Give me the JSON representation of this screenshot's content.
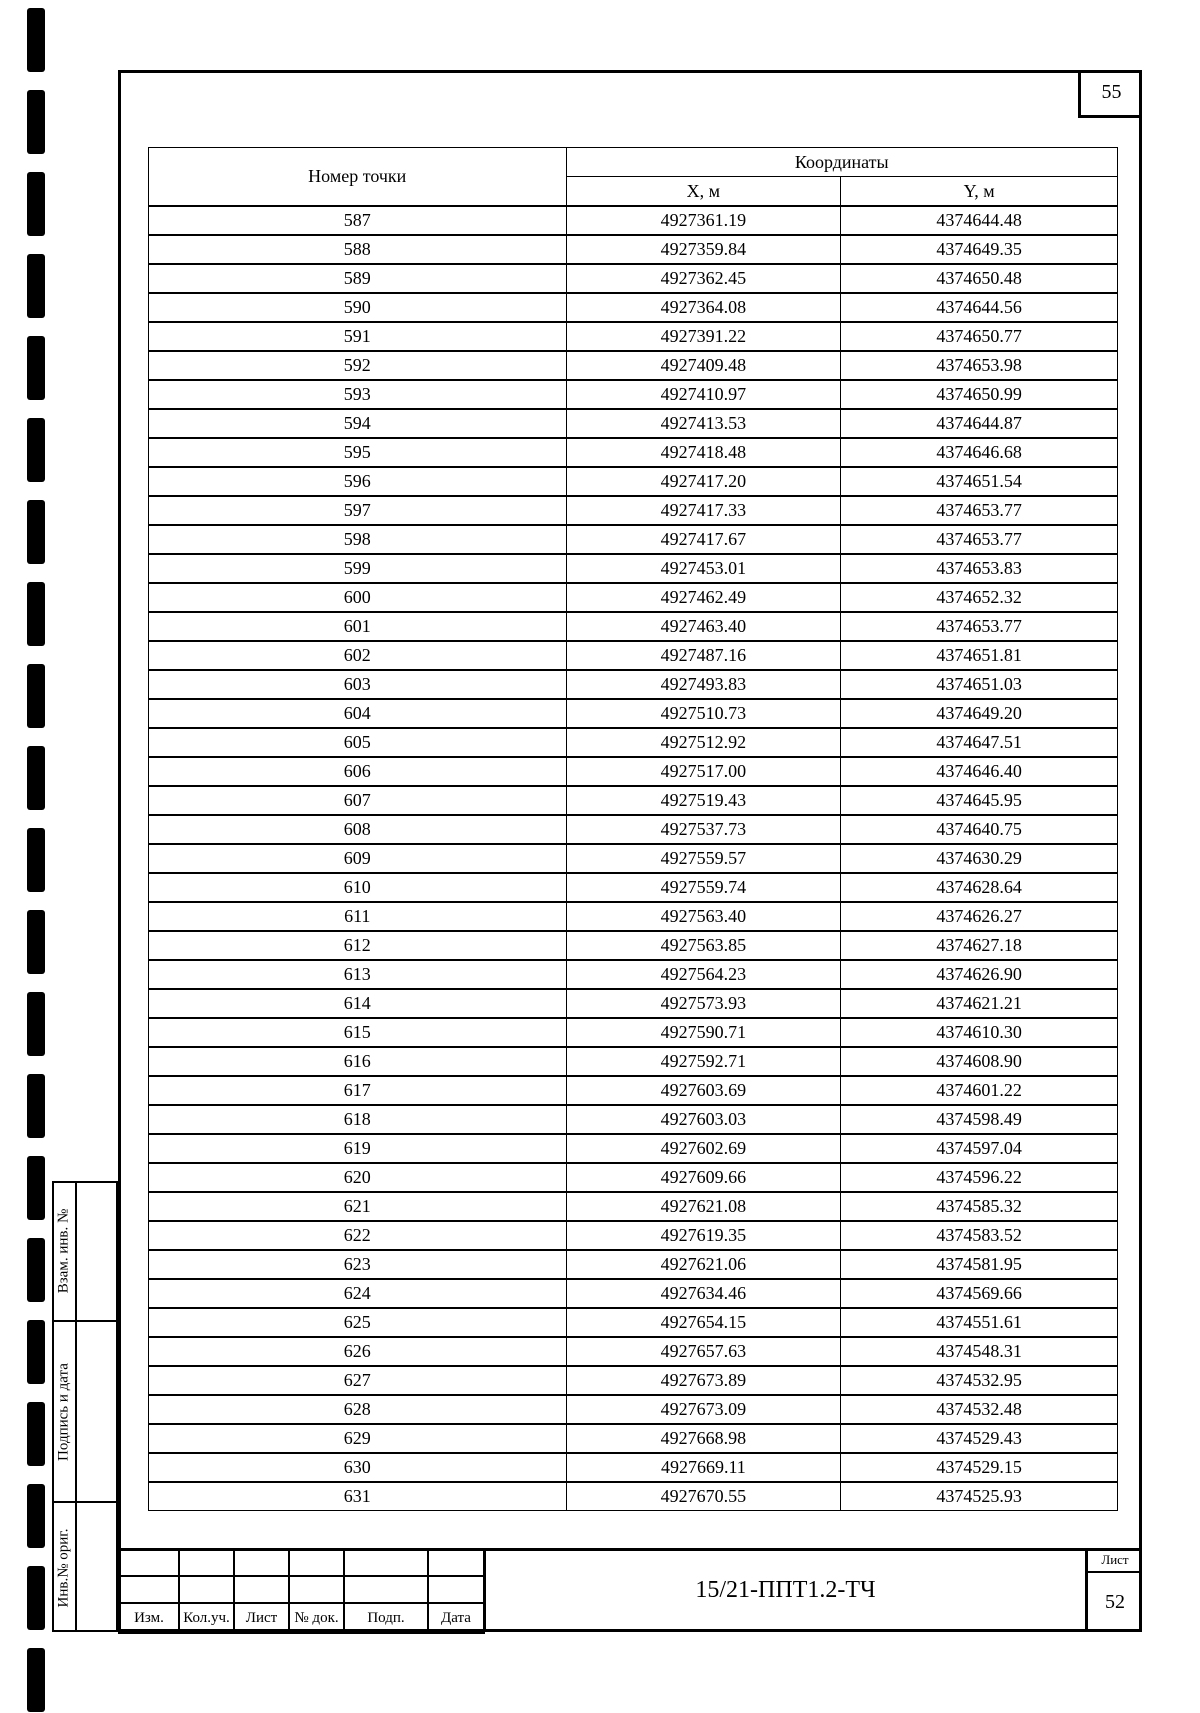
{
  "page_number": "55",
  "table": {
    "header": {
      "point": "Номер точки",
      "coords": "Координаты",
      "x": "X, м",
      "y": "Y, м"
    },
    "rows": [
      [
        "587",
        "4927361.19",
        "4374644.48"
      ],
      [
        "588",
        "4927359.84",
        "4374649.35"
      ],
      [
        "589",
        "4927362.45",
        "4374650.48"
      ],
      [
        "590",
        "4927364.08",
        "4374644.56"
      ],
      [
        "591",
        "4927391.22",
        "4374650.77"
      ],
      [
        "592",
        "4927409.48",
        "4374653.98"
      ],
      [
        "593",
        "4927410.97",
        "4374650.99"
      ],
      [
        "594",
        "4927413.53",
        "4374644.87"
      ],
      [
        "595",
        "4927418.48",
        "4374646.68"
      ],
      [
        "596",
        "4927417.20",
        "4374651.54"
      ],
      [
        "597",
        "4927417.33",
        "4374653.77"
      ],
      [
        "598",
        "4927417.67",
        "4374653.77"
      ],
      [
        "599",
        "4927453.01",
        "4374653.83"
      ],
      [
        "600",
        "4927462.49",
        "4374652.32"
      ],
      [
        "601",
        "4927463.40",
        "4374653.77"
      ],
      [
        "602",
        "4927487.16",
        "4374651.81"
      ],
      [
        "603",
        "4927493.83",
        "4374651.03"
      ],
      [
        "604",
        "4927510.73",
        "4374649.20"
      ],
      [
        "605",
        "4927512.92",
        "4374647.51"
      ],
      [
        "606",
        "4927517.00",
        "4374646.40"
      ],
      [
        "607",
        "4927519.43",
        "4374645.95"
      ],
      [
        "608",
        "4927537.73",
        "4374640.75"
      ],
      [
        "609",
        "4927559.57",
        "4374630.29"
      ],
      [
        "610",
        "4927559.74",
        "4374628.64"
      ],
      [
        "611",
        "4927563.40",
        "4374626.27"
      ],
      [
        "612",
        "4927563.85",
        "4374627.18"
      ],
      [
        "613",
        "4927564.23",
        "4374626.90"
      ],
      [
        "614",
        "4927573.93",
        "4374621.21"
      ],
      [
        "615",
        "4927590.71",
        "4374610.30"
      ],
      [
        "616",
        "4927592.71",
        "4374608.90"
      ],
      [
        "617",
        "4927603.69",
        "4374601.22"
      ],
      [
        "618",
        "4927603.03",
        "4374598.49"
      ],
      [
        "619",
        "4927602.69",
        "4374597.04"
      ],
      [
        "620",
        "4927609.66",
        "4374596.22"
      ],
      [
        "621",
        "4927621.08",
        "4374585.32"
      ],
      [
        "622",
        "4927619.35",
        "4374583.52"
      ],
      [
        "623",
        "4927621.06",
        "4374581.95"
      ],
      [
        "624",
        "4927634.46",
        "4374569.66"
      ],
      [
        "625",
        "4927654.15",
        "4374551.61"
      ],
      [
        "626",
        "4927657.63",
        "4374548.31"
      ],
      [
        "627",
        "4927673.89",
        "4374532.95"
      ],
      [
        "628",
        "4927673.09",
        "4374532.48"
      ],
      [
        "629",
        "4927668.98",
        "4374529.43"
      ],
      [
        "630",
        "4927669.11",
        "4374529.15"
      ],
      [
        "631",
        "4927670.55",
        "4374525.93"
      ]
    ]
  },
  "side_stamp": {
    "replaced_inv": "Взам. инв. №",
    "signature_date": "Подпись и дата",
    "orig_inv": "Инв.№ ориг."
  },
  "title_block": {
    "columns": [
      "Изм.",
      "Кол.уч.",
      "Лист",
      "№ док.",
      "Подп.",
      "Дата"
    ],
    "document_code": "15/21-ППТ1.2-ТЧ",
    "sheet_label": "Лист",
    "sheet_number": "52"
  }
}
